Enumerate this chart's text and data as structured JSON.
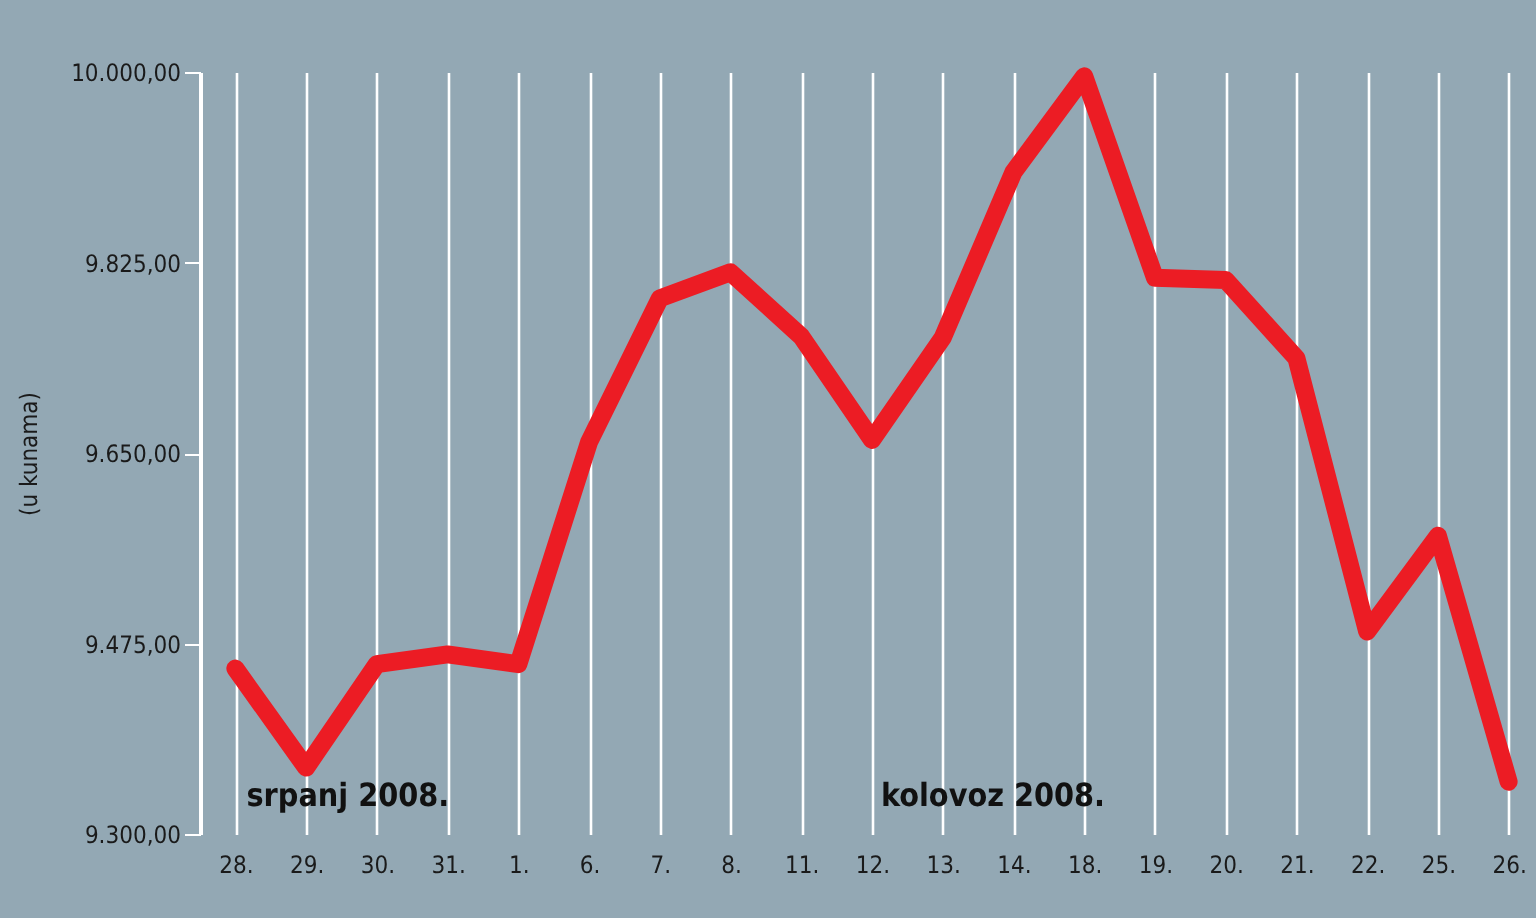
{
  "chart_data": {
    "type": "line",
    "ylabel": "(u kunama)",
    "categories": [
      "28.",
      "29.",
      "30.",
      "31.",
      "1.",
      "6.",
      "7.",
      "8.",
      "11.",
      "12.",
      "13.",
      "14.",
      "18.",
      "19.",
      "20.",
      "21.",
      "22.",
      "25.",
      "26."
    ],
    "series": [
      {
        "color": "#ec1c24",
        "values": [
          9452,
          9361,
          9456,
          9465,
          9456,
          9660,
          9792,
          9816,
          9757,
          9662,
          9756,
          9908,
          9996,
          9811,
          9809,
          9737,
          9486,
          9574,
          9348
        ]
      }
    ],
    "ylim": [
      9300,
      10000
    ],
    "yticks": [
      {
        "value": 9300,
        "label": "9.300,00"
      },
      {
        "value": 9475,
        "label": "9.475,00"
      },
      {
        "value": 9650,
        "label": "9.650,00"
      },
      {
        "value": 9825,
        "label": "9.825,00"
      },
      {
        "value": 10000,
        "label": "10.000,00"
      }
    ],
    "grid": "x",
    "marker": "none",
    "line_style": "solid",
    "annotations": [
      "srpanj 2008.",
      "kolovoz 2008."
    ]
  }
}
